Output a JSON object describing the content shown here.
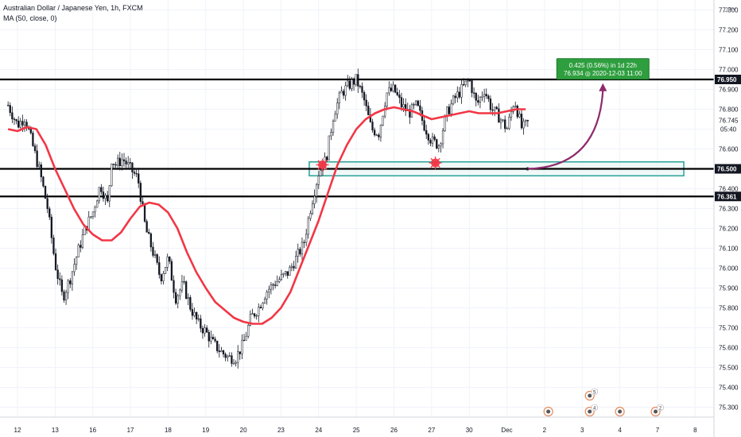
{
  "legend": {
    "title": "Australian Dollar / Japanese Yen, 1h, FXCM",
    "indicator": "MA (50, close, 0)"
  },
  "currency": "JPY",
  "colors": {
    "bull": "#131722",
    "bear": "#131722",
    "ma": "#f23645",
    "zone_border": "#2aa198",
    "zone_fill": "#e6f5f4",
    "arrow": "#8e2a6b",
    "measure_bg": "#2e9e3e",
    "price_label_bg": "#131722",
    "grid": "#f0f3fa"
  },
  "chart_data": {
    "type": "candlestick",
    "symbol": "Australian Dollar / Japanese Yen",
    "timeframe": "1h",
    "source": "FXCM",
    "ylim": [
      75.25,
      77.35
    ],
    "y_ticks": [
      75.3,
      75.4,
      75.5,
      75.6,
      75.7,
      75.8,
      75.9,
      76.0,
      76.1,
      76.2,
      76.3,
      76.4,
      76.6,
      76.7,
      76.8,
      76.9,
      77.0,
      77.1,
      77.2,
      77.3
    ],
    "x_ticks": [
      {
        "label": "12",
        "day": 0
      },
      {
        "label": "13",
        "day": 1
      },
      {
        "label": "16",
        "day": 2
      },
      {
        "label": "17",
        "day": 3
      },
      {
        "label": "18",
        "day": 4
      },
      {
        "label": "19",
        "day": 5
      },
      {
        "label": "20",
        "day": 6
      },
      {
        "label": "23",
        "day": 7
      },
      {
        "label": "24",
        "day": 8
      },
      {
        "label": "25",
        "day": 9
      },
      {
        "label": "26",
        "day": 10
      },
      {
        "label": "27",
        "day": 11
      },
      {
        "label": "30",
        "day": 12
      },
      {
        "label": "Dec",
        "day": 13
      },
      {
        "label": "2",
        "day": 14
      },
      {
        "label": "3",
        "day": 15
      },
      {
        "label": "4",
        "day": 16
      },
      {
        "label": "7",
        "day": 17
      },
      {
        "label": "8",
        "day": 18
      }
    ],
    "price_path": [
      [
        -0.25,
        76.82
      ],
      [
        0.0,
        76.72
      ],
      [
        0.2,
        76.76
      ],
      [
        0.4,
        76.62
      ],
      [
        0.6,
        76.48
      ],
      [
        0.8,
        76.3
      ],
      [
        1.0,
        76.02
      ],
      [
        1.2,
        75.85
      ],
      [
        1.4,
        75.95
      ],
      [
        1.6,
        76.08
      ],
      [
        1.8,
        76.2
      ],
      [
        2.0,
        76.28
      ],
      [
        2.2,
        76.42
      ],
      [
        2.4,
        76.32
      ],
      [
        2.5,
        76.55
      ],
      [
        2.6,
        76.52
      ],
      [
        2.8,
        76.55
      ],
      [
        3.0,
        76.5
      ],
      [
        3.2,
        76.45
      ],
      [
        3.4,
        76.2
      ],
      [
        3.6,
        76.08
      ],
      [
        3.8,
        75.95
      ],
      [
        4.0,
        76.05
      ],
      [
        4.2,
        75.85
      ],
      [
        4.4,
        75.92
      ],
      [
        4.6,
        75.8
      ],
      [
        4.8,
        75.72
      ],
      [
        5.0,
        75.68
      ],
      [
        5.2,
        75.62
      ],
      [
        5.4,
        75.58
      ],
      [
        5.6,
        75.55
      ],
      [
        5.8,
        75.55
      ],
      [
        6.0,
        75.62
      ],
      [
        6.2,
        75.75
      ],
      [
        6.4,
        75.8
      ],
      [
        6.6,
        75.88
      ],
      [
        6.8,
        75.92
      ],
      [
        7.0,
        75.95
      ],
      [
        7.2,
        75.98
      ],
      [
        7.4,
        76.05
      ],
      [
        7.6,
        76.12
      ],
      [
        7.8,
        76.32
      ],
      [
        8.0,
        76.48
      ],
      [
        8.2,
        76.55
      ],
      [
        8.4,
        76.78
      ],
      [
        8.6,
        76.88
      ],
      [
        8.8,
        76.92
      ],
      [
        9.0,
        76.95
      ],
      [
        9.2,
        76.85
      ],
      [
        9.4,
        76.7
      ],
      [
        9.6,
        76.68
      ],
      [
        9.8,
        76.88
      ],
      [
        10.0,
        76.9
      ],
      [
        10.2,
        76.82
      ],
      [
        10.4,
        76.78
      ],
      [
        10.6,
        76.82
      ],
      [
        10.8,
        76.72
      ],
      [
        11.0,
        76.64
      ],
      [
        11.2,
        76.62
      ],
      [
        11.4,
        76.78
      ],
      [
        11.6,
        76.85
      ],
      [
        11.8,
        76.9
      ],
      [
        12.0,
        76.95
      ],
      [
        12.2,
        76.82
      ],
      [
        12.4,
        76.9
      ],
      [
        12.6,
        76.8
      ],
      [
        12.8,
        76.76
      ],
      [
        13.0,
        76.7
      ],
      [
        13.2,
        76.85
      ],
      [
        13.4,
        76.7
      ],
      [
        13.6,
        76.74
      ]
    ],
    "moving_average": {
      "name": "MA (50, close, 0)",
      "points": [
        [
          -0.25,
          76.7
        ],
        [
          0.0,
          76.69
        ],
        [
          0.25,
          76.71
        ],
        [
          0.5,
          76.7
        ],
        [
          0.75,
          76.62
        ],
        [
          1.0,
          76.5
        ],
        [
          1.25,
          76.4
        ],
        [
          1.5,
          76.3
        ],
        [
          1.75,
          76.22
        ],
        [
          2.0,
          76.17
        ],
        [
          2.25,
          76.14
        ],
        [
          2.5,
          76.14
        ],
        [
          2.75,
          76.18
        ],
        [
          3.0,
          76.25
        ],
        [
          3.25,
          76.31
        ],
        [
          3.5,
          76.33
        ],
        [
          3.75,
          76.32
        ],
        [
          4.0,
          76.28
        ],
        [
          4.25,
          76.2
        ],
        [
          4.5,
          76.08
        ],
        [
          4.75,
          75.98
        ],
        [
          5.0,
          75.9
        ],
        [
          5.25,
          75.83
        ],
        [
          5.5,
          75.79
        ],
        [
          5.75,
          75.75
        ],
        [
          6.0,
          75.73
        ],
        [
          6.25,
          75.72
        ],
        [
          6.5,
          75.72
        ],
        [
          6.75,
          75.75
        ],
        [
          7.0,
          75.8
        ],
        [
          7.25,
          75.88
        ],
        [
          7.5,
          76.0
        ],
        [
          7.75,
          76.12
        ],
        [
          8.0,
          76.24
        ],
        [
          8.25,
          76.38
        ],
        [
          8.5,
          76.52
        ],
        [
          8.75,
          76.62
        ],
        [
          9.0,
          76.7
        ],
        [
          9.25,
          76.75
        ],
        [
          9.5,
          76.78
        ],
        [
          9.75,
          76.8
        ],
        [
          10.0,
          76.81
        ],
        [
          10.25,
          76.8
        ],
        [
          10.5,
          76.79
        ],
        [
          10.75,
          76.77
        ],
        [
          11.0,
          76.75
        ],
        [
          11.25,
          76.76
        ],
        [
          11.5,
          76.77
        ],
        [
          11.75,
          76.78
        ],
        [
          12.0,
          76.79
        ],
        [
          12.25,
          76.78
        ],
        [
          12.5,
          76.78
        ],
        [
          12.75,
          76.78
        ],
        [
          13.0,
          76.79
        ],
        [
          13.25,
          76.8
        ],
        [
          13.5,
          76.8
        ]
      ]
    },
    "horizontal_levels": [
      {
        "price": 76.95,
        "label": "76.950"
      },
      {
        "price": 76.5,
        "label": "76.500"
      },
      {
        "price": 76.361,
        "label": "76.361"
      }
    ],
    "current_price": {
      "label": "76.745",
      "price": 76.745,
      "countdown": "05:40"
    },
    "support_zone": {
      "from_day": 7.75,
      "to_day": 17.7,
      "low": 76.465,
      "high": 76.535
    },
    "touch_markers": [
      {
        "day": 8.1,
        "price": 76.52
      },
      {
        "day": 11.1,
        "price": 76.53
      }
    ],
    "projection_arrow": {
      "from": [
        13.55,
        76.5
      ],
      "to": [
        15.55,
        76.935
      ]
    },
    "measure_label": {
      "line1": "0.425 (0.56%) in 1d 22h",
      "line2": "76.934 ◎ 2020-12-03 11:00"
    },
    "event_icons": [
      {
        "day": 14.1,
        "count": ""
      },
      {
        "day": 15.2,
        "count": "5"
      },
      {
        "day": 15.2,
        "count": "4"
      },
      {
        "day": 16.0,
        "count": ""
      },
      {
        "day": 16.95,
        "count": "2"
      }
    ]
  }
}
